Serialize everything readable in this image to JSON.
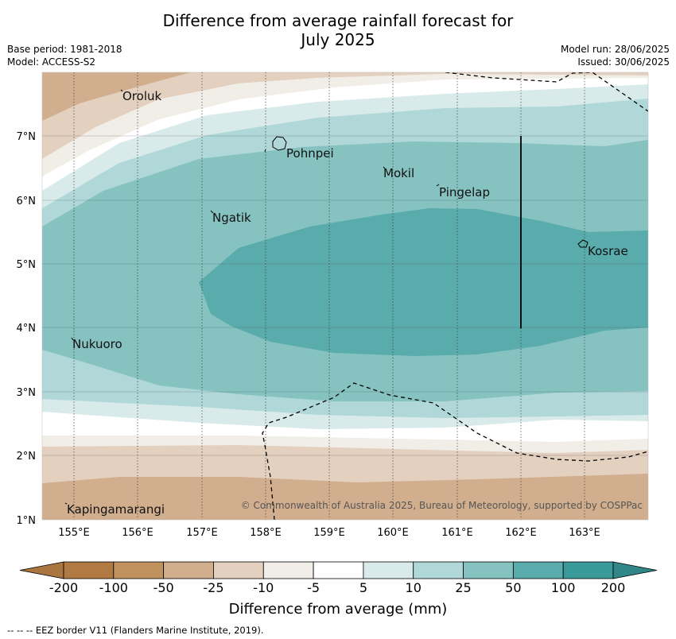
{
  "title_line1": "Difference from average rainfall forecast for",
  "title_line2": "July 2025",
  "meta": {
    "base_period": "Base period: 1981-2018",
    "model": "Model: ACCESS-S2",
    "model_run": "Model run: 28/06/2025",
    "issued": "Issued: 30/06/2025"
  },
  "map": {
    "lon_range": [
      154.5,
      164.0
    ],
    "lat_range": [
      1.0,
      8.0
    ],
    "x_ticks": [
      "155°E",
      "156°E",
      "157°E",
      "158°E",
      "159°E",
      "160°E",
      "161°E",
      "162°E",
      "163°E"
    ],
    "y_ticks": [
      "7°N",
      "6°N",
      "5°N",
      "4°N",
      "3°N",
      "2°N",
      "1°N"
    ],
    "places": [
      {
        "name": "Oroluk",
        "icon": "dot"
      },
      {
        "name": "Pohnpei",
        "icon": "island-outline"
      },
      {
        "name": "Mokil",
        "icon": "dot"
      },
      {
        "name": "Pingelap",
        "icon": "dot"
      },
      {
        "name": "Ngatik",
        "icon": "dot"
      },
      {
        "name": "Kosrae",
        "icon": "island-outline"
      },
      {
        "name": "Nukuoro",
        "icon": "dot"
      },
      {
        "name": "Kapingamarangi",
        "icon": "dot"
      }
    ],
    "copyright": "© Commonwealth of Australia 2025, Bureau of Meteorology, supported by COSPPac"
  },
  "colorbar": {
    "title": "Difference from average (mm)",
    "labels": [
      "-200",
      "-100",
      "-50",
      "-25",
      "-10",
      "-5",
      "5",
      "10",
      "25",
      "50",
      "100",
      "200"
    ],
    "colors": [
      "#a8763e",
      "#b07a42",
      "#c0925e",
      "#d1ae8e",
      "#e4d0bf",
      "#f1ede7",
      "#ffffff",
      "#d8ebea",
      "#b0d8d8",
      "#85c2c0",
      "#5aabab",
      "#3a9999",
      "#318787"
    ]
  },
  "footnote": "--  --  -- EEZ border V11 (Flanders Marine Institute, 2019)."
}
